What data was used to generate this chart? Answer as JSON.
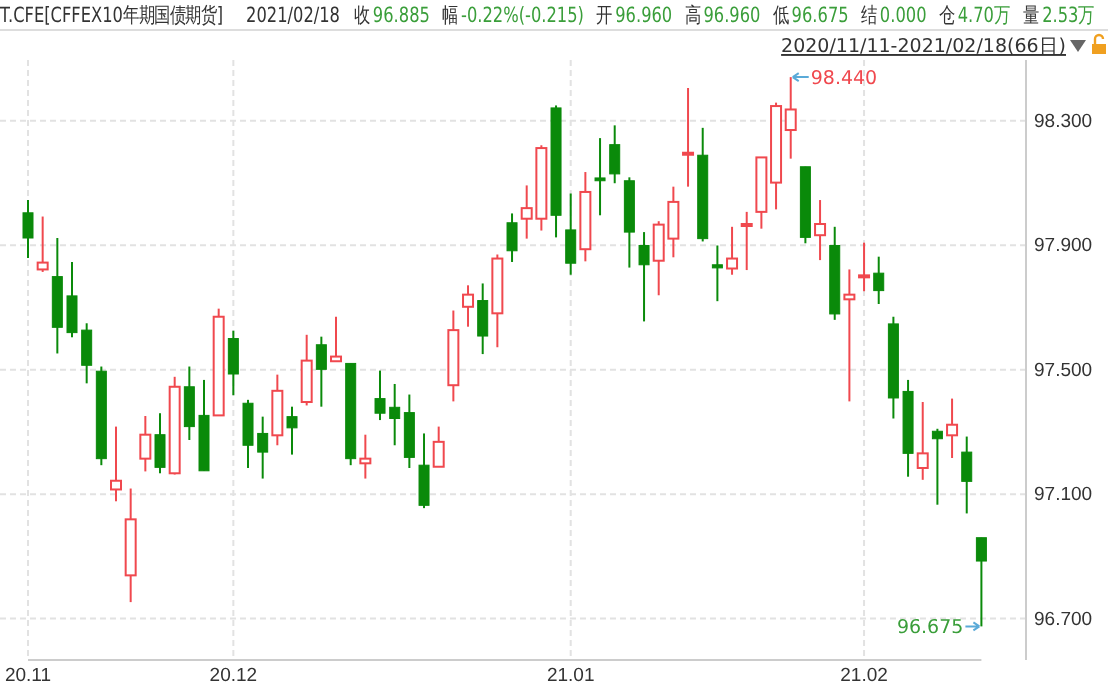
{
  "chart_data": {
    "type": "candlestick",
    "title": "T.CFE[CFFEX10年期国债期货]",
    "annotations": [
      "2021/02/18",
      "收96.885",
      "幅-0.22%(-0.215)",
      "开96.960",
      "高96.960",
      "低96.675",
      "结0.000",
      "仓4.70万",
      "量2.53万",
      "2020/11/11-2021/02/18(66日)",
      "98.440",
      "96.675"
    ],
    "categories": [
      "20.11",
      null,
      null,
      null,
      null,
      null,
      null,
      null,
      null,
      null,
      null,
      null,
      null,
      null,
      "20.12",
      null,
      null,
      null,
      null,
      null,
      null,
      null,
      null,
      null,
      null,
      null,
      null,
      null,
      null,
      null,
      null,
      null,
      null,
      null,
      null,
      null,
      null,
      "21.01",
      null,
      null,
      null,
      null,
      null,
      null,
      null,
      null,
      null,
      null,
      null,
      null,
      null,
      null,
      null,
      null,
      null,
      null,
      null,
      "21.02",
      null,
      null,
      null,
      null,
      null,
      null,
      null,
      null
    ],
    "ohlc": [
      [
        98.004,
        98.045,
        97.859,
        97.923
      ],
      [
        97.822,
        97.992,
        97.814,
        97.844
      ],
      [
        97.799,
        97.923,
        97.552,
        97.636
      ],
      [
        97.737,
        97.846,
        97.604,
        97.619
      ],
      [
        97.627,
        97.649,
        97.456,
        97.514
      ],
      [
        97.495,
        97.51,
        97.193,
        97.214
      ],
      [
        97.115,
        97.317,
        97.077,
        97.143
      ],
      [
        96.839,
        97.118,
        96.753,
        97.019
      ],
      [
        97.214,
        97.351,
        97.173,
        97.291
      ],
      [
        97.291,
        97.36,
        97.167,
        97.186
      ],
      [
        97.167,
        97.477,
        97.163,
        97.445
      ],
      [
        97.445,
        97.51,
        97.274,
        97.317
      ],
      [
        97.353,
        97.467,
        97.175,
        97.175
      ],
      [
        97.353,
        97.696,
        97.353,
        97.67
      ],
      [
        97.6,
        97.625,
        97.418,
        97.486
      ],
      [
        97.392,
        97.403,
        97.184,
        97.257
      ],
      [
        97.295,
        97.349,
        97.15,
        97.235
      ],
      [
        97.289,
        97.484,
        97.257,
        97.432
      ],
      [
        97.349,
        97.381,
        97.227,
        97.313
      ],
      [
        97.396,
        97.612,
        97.385,
        97.529
      ],
      [
        97.58,
        97.606,
        97.381,
        97.501
      ],
      [
        97.527,
        97.67,
        97.527,
        97.542
      ],
      [
        97.52,
        97.52,
        97.193,
        97.214
      ],
      [
        97.199,
        97.291,
        97.15,
        97.214
      ],
      [
        97.407,
        97.497,
        97.338,
        97.36
      ],
      [
        97.379,
        97.454,
        97.257,
        97.343
      ],
      [
        97.362,
        97.42,
        97.184,
        97.218
      ],
      [
        97.193,
        97.295,
        97.055,
        97.064
      ],
      [
        97.188,
        97.317,
        97.188,
        97.268
      ],
      [
        97.45,
        97.69,
        97.398,
        97.627
      ],
      [
        97.702,
        97.771,
        97.638,
        97.741
      ],
      [
        97.722,
        97.777,
        97.55,
        97.608
      ],
      [
        97.681,
        97.87,
        97.572,
        97.857
      ],
      [
        97.972,
        98.002,
        97.846,
        97.882
      ],
      [
        97.985,
        98.092,
        97.921,
        98.019
      ],
      [
        97.985,
        98.221,
        97.947,
        98.212
      ],
      [
        98.341,
        98.349,
        97.925,
        97.996
      ],
      [
        97.949,
        98.066,
        97.805,
        97.842
      ],
      [
        97.887,
        98.135,
        97.848,
        98.071
      ],
      [
        98.116,
        98.244,
        97.996,
        98.107
      ],
      [
        98.223,
        98.285,
        98.099,
        98.129
      ],
      [
        98.107,
        98.118,
        97.828,
        97.942
      ],
      [
        97.899,
        97.942,
        97.655,
        97.837
      ],
      [
        97.85,
        97.977,
        97.739,
        97.966
      ],
      [
        97.921,
        98.088,
        97.861,
        98.039
      ],
      [
        98.197,
        98.405,
        98.088,
        98.197
      ],
      [
        98.189,
        98.277,
        97.912,
        97.921
      ],
      [
        97.837,
        97.899,
        97.72,
        97.827
      ],
      [
        97.825,
        97.959,
        97.805,
        97.857
      ],
      [
        97.968,
        98.007,
        97.82,
        97.968
      ],
      [
        98.007,
        98.182,
        97.953,
        98.182
      ],
      [
        98.101,
        98.358,
        98.015,
        98.347
      ],
      [
        98.27,
        98.44,
        98.178,
        98.336
      ],
      [
        98.152,
        98.152,
        97.906,
        97.925
      ],
      [
        97.932,
        98.045,
        97.852,
        97.968
      ],
      [
        97.899,
        97.959,
        97.66,
        97.679
      ],
      [
        97.726,
        97.822,
        97.398,
        97.741
      ],
      [
        97.803,
        97.908,
        97.752,
        97.803
      ],
      [
        97.81,
        97.863,
        97.711,
        97.754
      ],
      [
        97.647,
        97.67,
        97.343,
        97.409
      ],
      [
        97.43,
        97.467,
        97.156,
        97.231
      ],
      [
        97.184,
        97.396,
        97.146,
        97.231
      ],
      [
        97.302,
        97.31,
        97.066,
        97.278
      ],
      [
        97.289,
        97.407,
        97.216,
        97.323
      ],
      [
        97.235,
        97.285,
        97.038,
        97.141
      ],
      [
        96.96,
        96.96,
        96.675,
        96.885
      ]
    ],
    "ylim": [
      96.567,
      98.495
    ],
    "yticks": [
      {
        "value": 98.3,
        "label": "98.300"
      },
      {
        "value": 97.9,
        "label": "97.900"
      },
      {
        "value": 97.5,
        "label": "97.500"
      },
      {
        "value": 97.1,
        "label": "97.100"
      },
      {
        "value": 96.7,
        "label": "96.700"
      }
    ],
    "grid": true
  }
}
